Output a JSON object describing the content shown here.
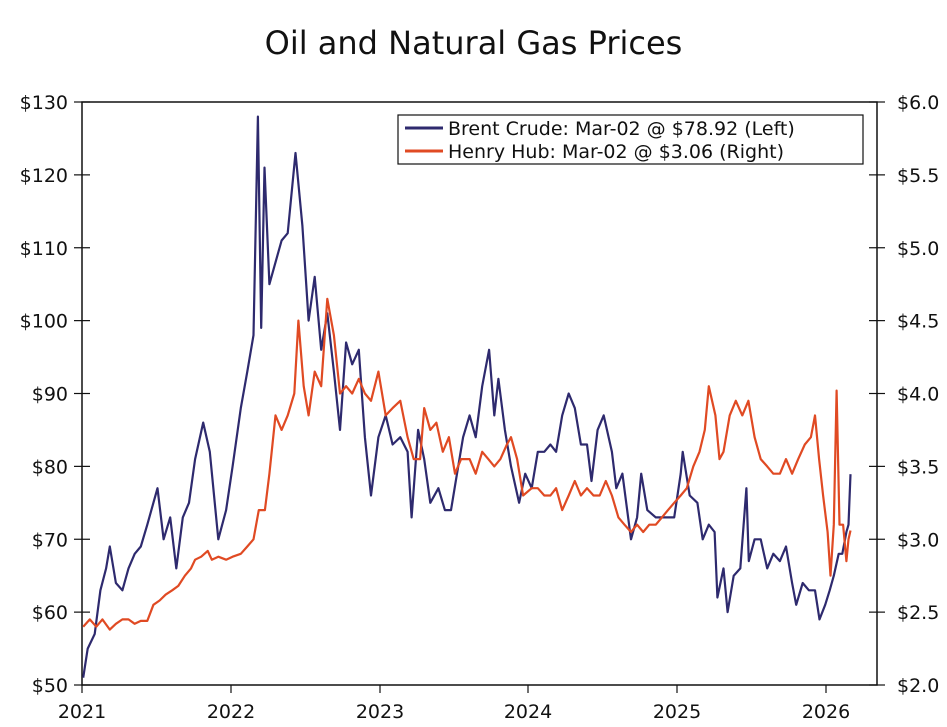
{
  "chart_data": {
    "type": "line",
    "title": "Oil and Natural Gas Prices",
    "x_ticks": [
      "2021",
      "2022",
      "2023",
      "2024",
      "2025",
      "2026"
    ],
    "y_left": {
      "min": 50,
      "max": 130,
      "ticks": [
        "$50",
        "$60",
        "$70",
        "$80",
        "$90",
        "$100",
        "$110",
        "$120",
        "$130"
      ]
    },
    "y_right": {
      "min": 2.0,
      "max": 6.0,
      "ticks": [
        "$2.0",
        "$2.5",
        "$3.0",
        "$3.5",
        "$4.0",
        "$4.5",
        "$5.0",
        "$5.5",
        "$6.0"
      ]
    },
    "legend_position": "top-right",
    "series": [
      {
        "name": "Brent Crude: Mar-02 @ $78.92 (Left)",
        "axis": "left",
        "color": "#2e2a6e",
        "points": [
          [
            "2021-01-04",
            51
          ],
          [
            "2021-01-15",
            55
          ],
          [
            "2021-02-01",
            57
          ],
          [
            "2021-02-15",
            63
          ],
          [
            "2021-03-01",
            66
          ],
          [
            "2021-03-10",
            69
          ],
          [
            "2021-03-25",
            64
          ],
          [
            "2021-04-10",
            63
          ],
          [
            "2021-04-25",
            66
          ],
          [
            "2021-05-10",
            68
          ],
          [
            "2021-05-25",
            69
          ],
          [
            "2021-06-10",
            72
          ],
          [
            "2021-06-25",
            75
          ],
          [
            "2021-07-05",
            77
          ],
          [
            "2021-07-20",
            70
          ],
          [
            "2021-08-05",
            73
          ],
          [
            "2021-08-20",
            66
          ],
          [
            "2021-09-05",
            73
          ],
          [
            "2021-09-20",
            75
          ],
          [
            "2021-10-05",
            81
          ],
          [
            "2021-10-25",
            86
          ],
          [
            "2021-11-10",
            82
          ],
          [
            "2021-12-01",
            70
          ],
          [
            "2021-12-20",
            74
          ],
          [
            "2022-01-05",
            80
          ],
          [
            "2022-01-25",
            88
          ],
          [
            "2022-02-10",
            93
          ],
          [
            "2022-02-25",
            98
          ],
          [
            "2022-03-08",
            128
          ],
          [
            "2022-03-16",
            99
          ],
          [
            "2022-03-24",
            121
          ],
          [
            "2022-04-05",
            105
          ],
          [
            "2022-04-20",
            108
          ],
          [
            "2022-05-05",
            111
          ],
          [
            "2022-05-20",
            112
          ],
          [
            "2022-06-08",
            123
          ],
          [
            "2022-06-25",
            113
          ],
          [
            "2022-07-10",
            100
          ],
          [
            "2022-07-25",
            106
          ],
          [
            "2022-08-10",
            96
          ],
          [
            "2022-08-25",
            101
          ],
          [
            "2022-09-10",
            93
          ],
          [
            "2022-09-25",
            85
          ],
          [
            "2022-10-10",
            97
          ],
          [
            "2022-10-25",
            94
          ],
          [
            "2022-11-10",
            96
          ],
          [
            "2022-11-25",
            84
          ],
          [
            "2022-12-10",
            76
          ],
          [
            "2022-12-28",
            84
          ],
          [
            "2023-01-15",
            87
          ],
          [
            "2023-02-01",
            83
          ],
          [
            "2023-02-20",
            84
          ],
          [
            "2023-03-10",
            82
          ],
          [
            "2023-03-20",
            73
          ],
          [
            "2023-04-05",
            85
          ],
          [
            "2023-04-20",
            81
          ],
          [
            "2023-05-05",
            75
          ],
          [
            "2023-05-25",
            77
          ],
          [
            "2023-06-10",
            74
          ],
          [
            "2023-06-25",
            74
          ],
          [
            "2023-07-10",
            79
          ],
          [
            "2023-07-25",
            84
          ],
          [
            "2023-08-10",
            87
          ],
          [
            "2023-08-25",
            84
          ],
          [
            "2023-09-10",
            91
          ],
          [
            "2023-09-27",
            96
          ],
          [
            "2023-10-10",
            87
          ],
          [
            "2023-10-20",
            92
          ],
          [
            "2023-11-05",
            85
          ],
          [
            "2023-11-20",
            80
          ],
          [
            "2023-12-10",
            75
          ],
          [
            "2023-12-25",
            79
          ],
          [
            "2024-01-10",
            77
          ],
          [
            "2024-01-25",
            82
          ],
          [
            "2024-02-10",
            82
          ],
          [
            "2024-02-25",
            83
          ],
          [
            "2024-03-10",
            82
          ],
          [
            "2024-03-25",
            87
          ],
          [
            "2024-04-10",
            90
          ],
          [
            "2024-04-25",
            88
          ],
          [
            "2024-05-10",
            83
          ],
          [
            "2024-05-25",
            83
          ],
          [
            "2024-06-05",
            78
          ],
          [
            "2024-06-20",
            85
          ],
          [
            "2024-07-05",
            87
          ],
          [
            "2024-07-25",
            82
          ],
          [
            "2024-08-05",
            77
          ],
          [
            "2024-08-20",
            79
          ],
          [
            "2024-09-10",
            70
          ],
          [
            "2024-09-25",
            73
          ],
          [
            "2024-10-05",
            79
          ],
          [
            "2024-10-20",
            74
          ],
          [
            "2024-11-10",
            73
          ],
          [
            "2024-11-25",
            73
          ],
          [
            "2024-12-10",
            73
          ],
          [
            "2024-12-25",
            73
          ],
          [
            "2025-01-10",
            79
          ],
          [
            "2025-01-15",
            82
          ],
          [
            "2025-02-01",
            76
          ],
          [
            "2025-02-20",
            75
          ],
          [
            "2025-03-05",
            70
          ],
          [
            "2025-03-20",
            72
          ],
          [
            "2025-04-03",
            71
          ],
          [
            "2025-04-10",
            62
          ],
          [
            "2025-04-25",
            66
          ],
          [
            "2025-05-05",
            60
          ],
          [
            "2025-05-20",
            65
          ],
          [
            "2025-06-05",
            66
          ],
          [
            "2025-06-20",
            77
          ],
          [
            "2025-06-26",
            67
          ],
          [
            "2025-07-10",
            70
          ],
          [
            "2025-07-25",
            70
          ],
          [
            "2025-08-10",
            66
          ],
          [
            "2025-08-25",
            68
          ],
          [
            "2025-09-10",
            67
          ],
          [
            "2025-09-25",
            69
          ],
          [
            "2025-10-10",
            64
          ],
          [
            "2025-10-20",
            61
          ],
          [
            "2025-11-05",
            64
          ],
          [
            "2025-11-20",
            63
          ],
          [
            "2025-12-05",
            63
          ],
          [
            "2025-12-16",
            59
          ],
          [
            "2025-12-30",
            61
          ],
          [
            "2026-01-10",
            63
          ],
          [
            "2026-01-20",
            65
          ],
          [
            "2026-02-01",
            68
          ],
          [
            "2026-02-10",
            68
          ],
          [
            "2026-02-20",
            71
          ],
          [
            "2026-02-25",
            72
          ],
          [
            "2026-03-02",
            78.92
          ]
        ]
      },
      {
        "name": "Henry Hub: Mar-02 @ $3.06 (Right)",
        "axis": "right",
        "color": "#e04a23",
        "points": [
          [
            "2021-01-04",
            2.4
          ],
          [
            "2021-01-20",
            2.45
          ],
          [
            "2021-02-05",
            2.4
          ],
          [
            "2021-02-20",
            2.45
          ],
          [
            "2021-03-10",
            2.38
          ],
          [
            "2021-03-25",
            2.42
          ],
          [
            "2021-04-10",
            2.45
          ],
          [
            "2021-04-25",
            2.45
          ],
          [
            "2021-05-10",
            2.42
          ],
          [
            "2021-05-25",
            2.44
          ],
          [
            "2021-06-10",
            2.44
          ],
          [
            "2021-06-25",
            2.55
          ],
          [
            "2021-07-10",
            2.58
          ],
          [
            "2021-07-25",
            2.62
          ],
          [
            "2021-08-10",
            2.65
          ],
          [
            "2021-08-25",
            2.68
          ],
          [
            "2021-09-10",
            2.75
          ],
          [
            "2021-09-25",
            2.8
          ],
          [
            "2021-10-05",
            2.86
          ],
          [
            "2021-10-20",
            2.88
          ],
          [
            "2021-11-05",
            2.92
          ],
          [
            "2021-11-15",
            2.86
          ],
          [
            "2021-12-01",
            2.88
          ],
          [
            "2021-12-20",
            2.86
          ],
          [
            "2022-01-05",
            2.88
          ],
          [
            "2022-01-25",
            2.9
          ],
          [
            "2022-02-10",
            2.95
          ],
          [
            "2022-02-25",
            3.0
          ],
          [
            "2022-03-10",
            3.2
          ],
          [
            "2022-03-25",
            3.2
          ],
          [
            "2022-04-05",
            3.45
          ],
          [
            "2022-04-20",
            3.85
          ],
          [
            "2022-05-05",
            3.75
          ],
          [
            "2022-05-20",
            3.85
          ],
          [
            "2022-06-05",
            4.0
          ],
          [
            "2022-06-15",
            4.5
          ],
          [
            "2022-06-28",
            4.05
          ],
          [
            "2022-07-10",
            3.85
          ],
          [
            "2022-07-25",
            4.15
          ],
          [
            "2022-08-10",
            4.05
          ],
          [
            "2022-08-25",
            4.65
          ],
          [
            "2022-09-10",
            4.4
          ],
          [
            "2022-09-25",
            4.0
          ],
          [
            "2022-10-10",
            4.05
          ],
          [
            "2022-10-25",
            4.0
          ],
          [
            "2022-11-10",
            4.1
          ],
          [
            "2022-11-25",
            4.0
          ],
          [
            "2022-12-10",
            3.95
          ],
          [
            "2022-12-28",
            4.15
          ],
          [
            "2023-01-15",
            3.85
          ],
          [
            "2023-02-01",
            3.9
          ],
          [
            "2023-02-20",
            3.95
          ],
          [
            "2023-03-10",
            3.7
          ],
          [
            "2023-03-25",
            3.55
          ],
          [
            "2023-04-10",
            3.55
          ],
          [
            "2023-04-20",
            3.9
          ],
          [
            "2023-05-05",
            3.75
          ],
          [
            "2023-05-20",
            3.8
          ],
          [
            "2023-06-05",
            3.6
          ],
          [
            "2023-06-20",
            3.7
          ],
          [
            "2023-07-05",
            3.45
          ],
          [
            "2023-07-20",
            3.55
          ],
          [
            "2023-08-10",
            3.55
          ],
          [
            "2023-08-25",
            3.45
          ],
          [
            "2023-09-10",
            3.6
          ],
          [
            "2023-09-25",
            3.55
          ],
          [
            "2023-10-10",
            3.5
          ],
          [
            "2023-10-25",
            3.55
          ],
          [
            "2023-11-10",
            3.65
          ],
          [
            "2023-11-20",
            3.7
          ],
          [
            "2023-12-05",
            3.55
          ],
          [
            "2023-12-20",
            3.3
          ],
          [
            "2024-01-10",
            3.35
          ],
          [
            "2024-01-25",
            3.35
          ],
          [
            "2024-02-10",
            3.3
          ],
          [
            "2024-02-25",
            3.3
          ],
          [
            "2024-03-10",
            3.35
          ],
          [
            "2024-03-25",
            3.2
          ],
          [
            "2024-04-10",
            3.3
          ],
          [
            "2024-04-25",
            3.4
          ],
          [
            "2024-05-10",
            3.3
          ],
          [
            "2024-05-25",
            3.35
          ],
          [
            "2024-06-10",
            3.3
          ],
          [
            "2024-06-25",
            3.3
          ],
          [
            "2024-07-10",
            3.4
          ],
          [
            "2024-07-25",
            3.3
          ],
          [
            "2024-08-10",
            3.15
          ],
          [
            "2024-08-25",
            3.1
          ],
          [
            "2024-09-10",
            3.05
          ],
          [
            "2024-09-25",
            3.1
          ],
          [
            "2024-10-10",
            3.05
          ],
          [
            "2024-10-25",
            3.1
          ],
          [
            "2024-11-10",
            3.1
          ],
          [
            "2024-11-25",
            3.15
          ],
          [
            "2024-12-10",
            3.2
          ],
          [
            "2024-12-25",
            3.25
          ],
          [
            "2025-01-10",
            3.3
          ],
          [
            "2025-01-25",
            3.35
          ],
          [
            "2025-02-10",
            3.5
          ],
          [
            "2025-02-25",
            3.6
          ],
          [
            "2025-03-10",
            3.75
          ],
          [
            "2025-03-20",
            4.05
          ],
          [
            "2025-04-05",
            3.85
          ],
          [
            "2025-04-15",
            3.55
          ],
          [
            "2025-04-25",
            3.6
          ],
          [
            "2025-05-10",
            3.85
          ],
          [
            "2025-05-25",
            3.95
          ],
          [
            "2025-06-10",
            3.85
          ],
          [
            "2025-06-25",
            3.95
          ],
          [
            "2025-07-10",
            3.7
          ],
          [
            "2025-07-25",
            3.55
          ],
          [
            "2025-08-10",
            3.5
          ],
          [
            "2025-08-25",
            3.45
          ],
          [
            "2025-09-10",
            3.45
          ],
          [
            "2025-09-25",
            3.55
          ],
          [
            "2025-10-10",
            3.45
          ],
          [
            "2025-10-25",
            3.55
          ],
          [
            "2025-11-10",
            3.65
          ],
          [
            "2025-11-25",
            3.7
          ],
          [
            "2025-12-05",
            3.85
          ],
          [
            "2025-12-15",
            3.55
          ],
          [
            "2025-12-25",
            3.3
          ],
          [
            "2026-01-05",
            3.05
          ],
          [
            "2026-01-12",
            2.75
          ],
          [
            "2026-01-20",
            3.1
          ],
          [
            "2026-01-27",
            4.02
          ],
          [
            "2026-02-03",
            3.1
          ],
          [
            "2026-02-12",
            3.1
          ],
          [
            "2026-02-20",
            2.85
          ],
          [
            "2026-02-25",
            3.0
          ],
          [
            "2026-03-02",
            3.06
          ]
        ]
      }
    ]
  }
}
